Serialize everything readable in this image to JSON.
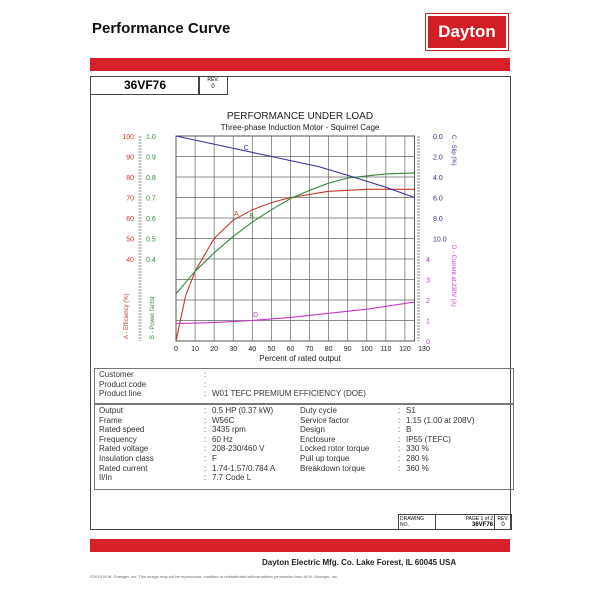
{
  "header": {
    "title": "Performance Curve",
    "logo": "Dayton"
  },
  "doc": {
    "code": "36VF76",
    "rev_label": "REV.",
    "rev": "0"
  },
  "chart_data": {
    "type": "line",
    "title": "PERFORMANCE UNDER LOAD",
    "subtitle": "Three-phase Induction Motor - Squirrel Cage",
    "xlabel": "Percent of rated output",
    "xlim": [
      0,
      130
    ],
    "xticks": [
      "0",
      "10",
      "20",
      "30",
      "40",
      "50",
      "60",
      "70",
      "80",
      "90",
      "100",
      "110",
      "120",
      "130"
    ],
    "grid": true,
    "axes": {
      "efficiency": {
        "label": "A - Efficiency (%)",
        "ticks": [
          "100",
          "90",
          "80",
          "70",
          "60",
          "50",
          "40"
        ],
        "color": "#c0392b"
      },
      "power_factor": {
        "label": "B - Power factor",
        "ticks": [
          "1.0",
          "0.9",
          "0.8",
          "0.7",
          "0.6",
          "0.5",
          "0.4"
        ],
        "color": "#2e8b3a"
      },
      "slip": {
        "label": "C - Slip (%)",
        "ticks": [
          "0.0",
          "2.0",
          "4.0",
          "6.0",
          "8.0",
          "10.0"
        ],
        "color": "#33339a"
      },
      "current": {
        "label": "D - Current at 230V (A)",
        "ticks": [
          "0",
          "1",
          "2",
          "3",
          "4"
        ],
        "color": "#c43ac4"
      }
    },
    "series": [
      {
        "name": "A",
        "axis": "efficiency",
        "color": "#c0392b",
        "x": [
          0,
          5,
          10,
          20,
          30,
          40,
          50,
          60,
          70,
          80,
          100,
          125
        ],
        "y": [
          0,
          22,
          34,
          50,
          59,
          64,
          67.5,
          70,
          71.5,
          73,
          74,
          74
        ]
      },
      {
        "name": "B",
        "axis": "power_factor",
        "color": "#2e8b3a",
        "x": [
          0,
          10,
          20,
          30,
          40,
          50,
          60,
          70,
          80,
          90,
          100,
          110,
          125
        ],
        "y": [
          0.23,
          0.34,
          0.43,
          0.51,
          0.58,
          0.64,
          0.695,
          0.735,
          0.77,
          0.795,
          0.805,
          0.815,
          0.82
        ]
      },
      {
        "name": "C",
        "axis": "slip",
        "color": "#33339a",
        "x": [
          0,
          25,
          50,
          75,
          93,
          110,
          125
        ],
        "y": [
          0,
          1.0,
          2.0,
          3.0,
          4.0,
          5.0,
          6.0
        ]
      },
      {
        "name": "D",
        "axis": "current",
        "color": "#c43ac4",
        "x": [
          0,
          20,
          40,
          60,
          80,
          100,
          125
        ],
        "y": [
          0.85,
          0.9,
          1.0,
          1.15,
          1.35,
          1.55,
          1.9
        ]
      }
    ]
  },
  "customer": [
    {
      "label": "Customer",
      "value": ""
    },
    {
      "label": "Product code",
      "value": ""
    },
    {
      "label": "Product line",
      "value": "W01 TEFC PREMIUM EFFICIENCY (DOE)"
    }
  ],
  "specs": [
    {
      "l1": "Output",
      "v1": "0.5 HP (0.37 kW)",
      "l2": "Duty cycle",
      "v2": "S1"
    },
    {
      "l1": "Frame",
      "v1": "W56C",
      "l2": "Service factor",
      "v2": "1.15   (1.00 at 208V)"
    },
    {
      "l1": "Rated speed",
      "v1": "3435 rpm",
      "l2": "Design",
      "v2": "B"
    },
    {
      "l1": "Frequency",
      "v1": "60 Hz",
      "l2": "Enclosure",
      "v2": "IP55 (TEFC)"
    },
    {
      "l1": "Rated voltage",
      "v1": "208-230/460 V",
      "l2": "Locked rotor torque",
      "v2": "330 %"
    },
    {
      "l1": "Insulation class",
      "v1": "F",
      "l2": "Pull up torque",
      "v2": "280 %"
    },
    {
      "l1": "Rated current",
      "v1": "1.74-1.57/0.784 A",
      "l2": "Breakdown torque",
      "v2": "360 %"
    },
    {
      "l1": "Il/In",
      "v1": "7.7   Code L",
      "l2": "",
      "v2": ""
    }
  ],
  "drawing": {
    "label": "DRAWING NO.",
    "page": "PAGE 1 of 2",
    "number": "36VF76",
    "rev_label": "REV.",
    "rev": "0"
  },
  "footer": {
    "company": "Dayton Electric Mfg. Co.  Lake Forest, IL  60045  USA",
    "copyright": "©2015 W.W. Grainger, Inc.   This design may not be reproduced, modified or redistributed without written permission from W.W. Grainger, Inc."
  }
}
